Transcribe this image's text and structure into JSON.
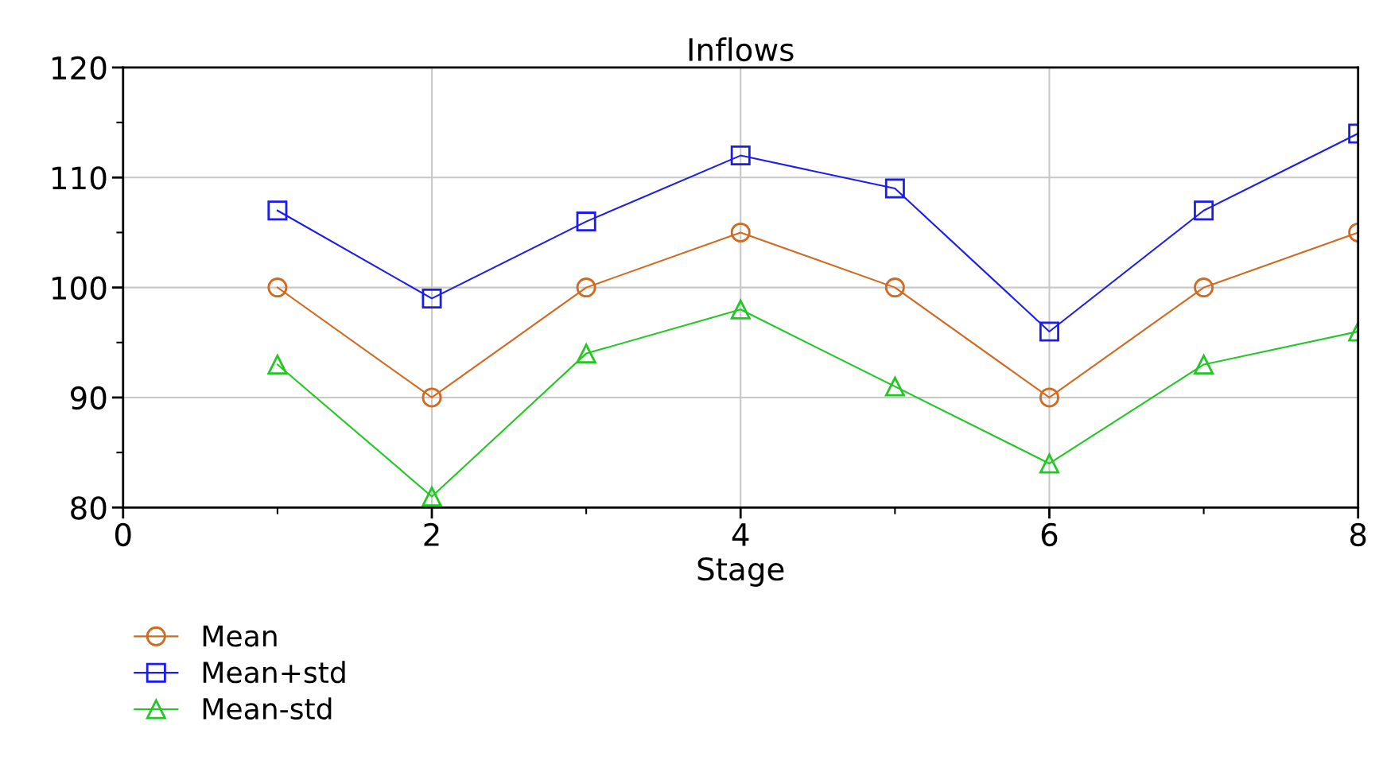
{
  "chart_data": {
    "type": "line",
    "title": "Inflows",
    "xlabel": "Stage",
    "x": [
      1,
      2,
      3,
      4,
      5,
      6,
      7,
      8
    ],
    "series": [
      {
        "name": "Mean",
        "color": "#d2691e",
        "marker": "circle",
        "values": [
          100,
          90,
          100,
          105,
          100,
          90,
          100,
          105
        ]
      },
      {
        "name": "Mean+std",
        "color": "#1c1cf0",
        "marker": "square",
        "values": [
          107,
          99,
          106,
          112,
          109,
          96,
          107,
          114
        ]
      },
      {
        "name": "Mean-std",
        "color": "#22c822",
        "marker": "triangle",
        "values": [
          93,
          81,
          94,
          98,
          91,
          84,
          93,
          96
        ]
      }
    ],
    "xlim": [
      0,
      8
    ],
    "xticks": [
      0,
      2,
      4,
      6,
      8
    ],
    "ylim": [
      80,
      120
    ],
    "yticks": [
      80,
      90,
      100,
      110,
      120
    ],
    "grid": true,
    "legend": "bottom left",
    "line_style": "solid"
  }
}
